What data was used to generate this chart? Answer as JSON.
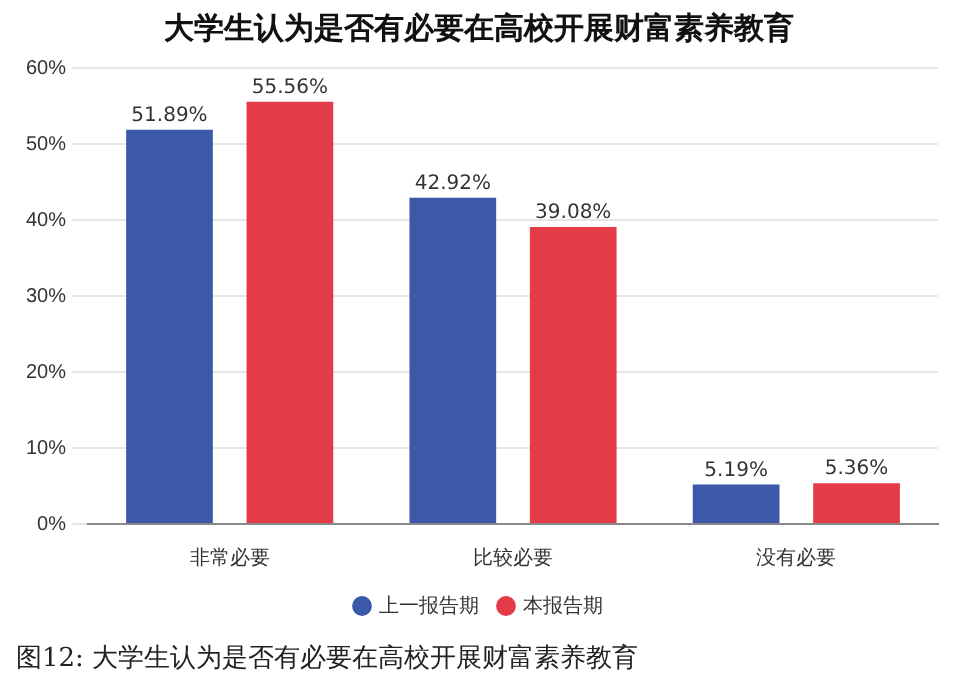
{
  "chart_data": {
    "type": "bar",
    "title": "大学生认为是否有必要在高校开展财富素养教育",
    "categories": [
      "非常必要",
      "比较必要",
      "没有必要"
    ],
    "series": [
      {
        "name": "上一报告期",
        "color": "#3b59a8",
        "values": [
          51.89,
          42.92,
          5.19
        ],
        "value_labels": [
          "51.89%",
          "42.92%",
          "5.19%"
        ]
      },
      {
        "name": "本报告期",
        "color": "#e33b47",
        "values": [
          55.56,
          39.08,
          5.36
        ],
        "value_labels": [
          "55.56%",
          "39.08%",
          "5.36%"
        ]
      }
    ],
    "ylim": [
      0,
      60
    ],
    "yticks": [
      {
        "value": 0,
        "label": "0%"
      },
      {
        "value": 10,
        "label": "10%"
      },
      {
        "value": 20,
        "label": "20%"
      },
      {
        "value": 30,
        "label": "30%"
      },
      {
        "value": 40,
        "label": "40%"
      },
      {
        "value": 50,
        "label": "50%"
      },
      {
        "value": 60,
        "label": "60%"
      }
    ],
    "grid": "y",
    "legend": "bottom",
    "annotations": [
      "图12: 大学生认为是否有必要在高校开展财富素养教育"
    ]
  }
}
